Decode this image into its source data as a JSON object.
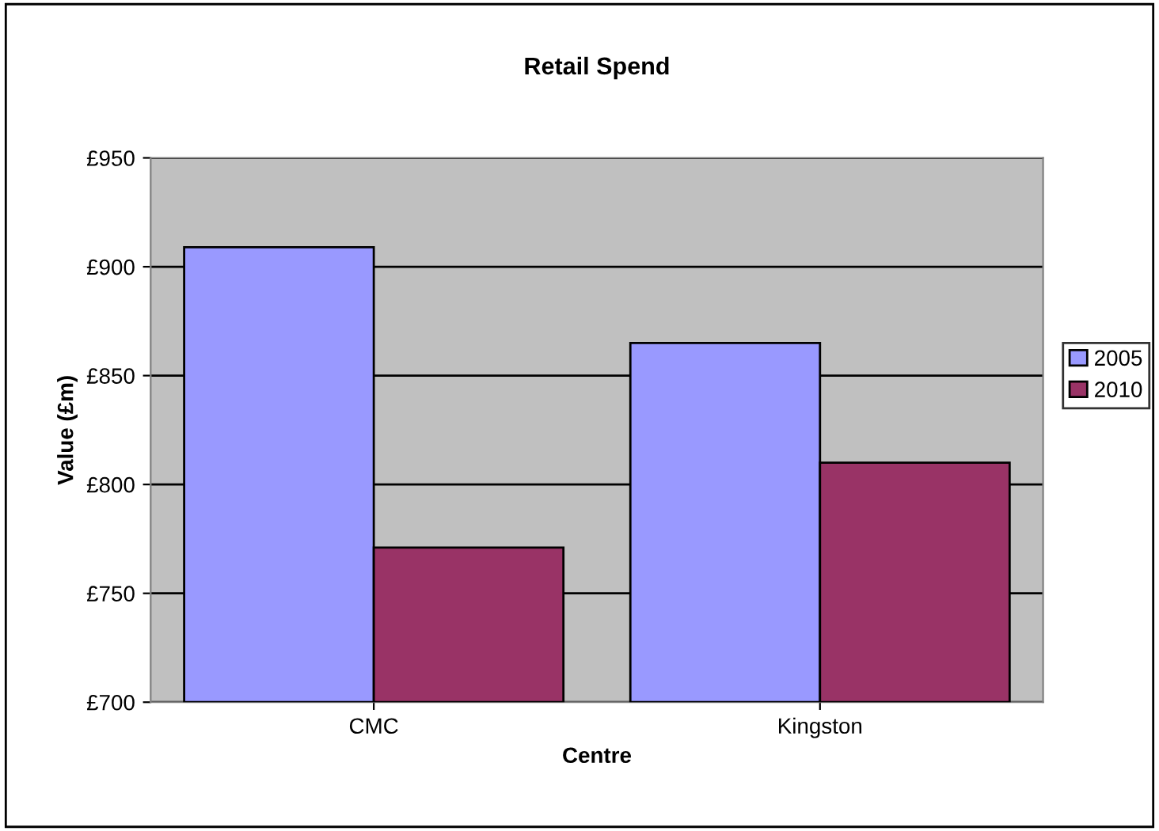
{
  "chart_data": {
    "type": "bar",
    "title": "Retail Spend",
    "xlabel": "Centre",
    "ylabel": "Value (£m)",
    "categories": [
      "CMC",
      "Kingston"
    ],
    "series": [
      {
        "name": "2005",
        "color": "#9999ff",
        "values": [
          909,
          865
        ]
      },
      {
        "name": "2010",
        "color": "#993366",
        "values": [
          771,
          810
        ]
      }
    ],
    "ylim": [
      700,
      950
    ],
    "yticks": [
      {
        "value": 700,
        "label": "£700"
      },
      {
        "value": 750,
        "label": "£750"
      },
      {
        "value": 800,
        "label": "£800"
      },
      {
        "value": 850,
        "label": "£850"
      },
      {
        "value": 900,
        "label": "£900"
      },
      {
        "value": 950,
        "label": "£950"
      }
    ],
    "grid": "y",
    "legend": "right"
  }
}
